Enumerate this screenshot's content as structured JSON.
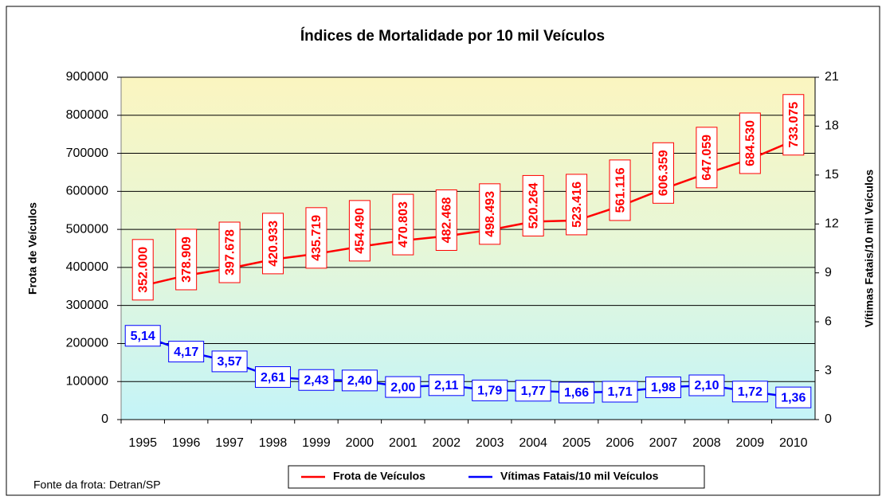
{
  "chart_data": {
    "type": "line",
    "title": "Índices de Mortalidade por 10 mil Veículos",
    "ylabel": "Frota de Veículos",
    "y2label": "Vítimas Fatais/10 mil Veículos",
    "note": "Fonte da frota: Detran/SP",
    "categories": [
      "1995",
      "1996",
      "1997",
      "1998",
      "1999",
      "2000",
      "2001",
      "2002",
      "2003",
      "2004",
      "2005",
      "2006",
      "2007",
      "2008",
      "2009",
      "2010"
    ],
    "series": [
      {
        "name": "Frota de Veículos",
        "color": "#ff0000",
        "axis": "y",
        "values": [
          352000,
          378909,
          397678,
          420933,
          435719,
          454490,
          470803,
          482468,
          498493,
          520264,
          523416,
          561116,
          606359,
          647059,
          684530,
          733075
        ],
        "value_labels": [
          "352.000",
          "378.909",
          "397.678",
          "420.933",
          "435.719",
          "454.490",
          "470.803",
          "482.468",
          "498.493",
          "520.264",
          "523.416",
          "561.116",
          "606.359",
          "647.059",
          "684.530",
          "733.075"
        ]
      },
      {
        "name": "Vítimas Fatais/10 mil Veículos",
        "color": "#0000ff",
        "axis": "y2",
        "values": [
          5.14,
          4.17,
          3.57,
          2.61,
          2.43,
          2.4,
          2.0,
          2.11,
          1.79,
          1.77,
          1.66,
          1.71,
          1.98,
          2.1,
          1.72,
          1.36
        ],
        "value_labels": [
          "5,14",
          "4,17",
          "3,57",
          "2,61",
          "2,43",
          "2,40",
          "2,00",
          "2,11",
          "1,79",
          "1,77",
          "1,66",
          "1,71",
          "1,98",
          "2,10",
          "1,72",
          "1,36"
        ]
      }
    ],
    "ylim": [
      0,
      900000
    ],
    "yticks": [
      0,
      100000,
      200000,
      300000,
      400000,
      500000,
      600000,
      700000,
      800000,
      900000
    ],
    "y2lim": [
      0,
      21
    ],
    "y2ticks": [
      0,
      3,
      6,
      9,
      12,
      15,
      18,
      21
    ],
    "grid": true,
    "legend": "bottom"
  }
}
